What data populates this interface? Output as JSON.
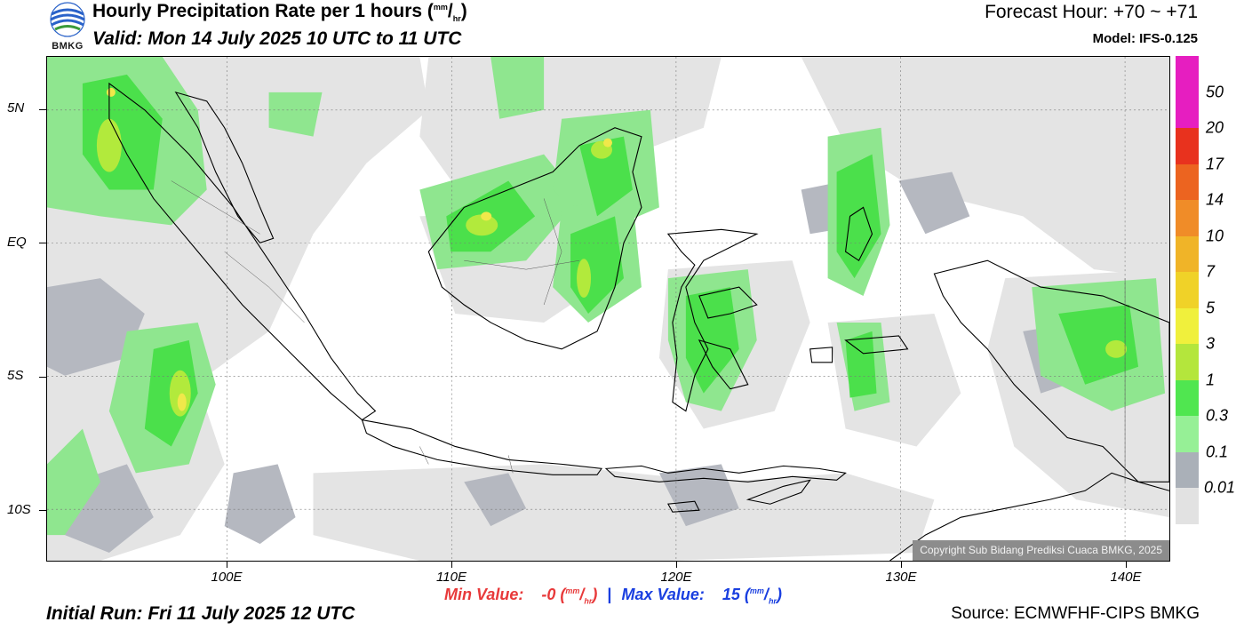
{
  "header": {
    "title_main": "Hourly Precipitation Rate per 1 hours (",
    "title_unit_num": "mm",
    "title_unit_sep": "/",
    "title_unit_den": "hr",
    "title_close": ")",
    "valid": "Valid: Mon 14 July 2025 10 UTC to 11 UTC",
    "forecast_hour": "Forecast Hour: +70 ~ +71",
    "model": "Model: IFS-0.125",
    "logo_text": "BMKG"
  },
  "map": {
    "copyright": "Copyright Sub Bidang Prediksi Cuaca BMKG, 2025",
    "lat_labels": [
      "5N",
      "EQ",
      "5S",
      "10S"
    ],
    "lon_labels": [
      "100E",
      "110E",
      "120E",
      "130E",
      "140E"
    ],
    "colors": {
      "very_light": "#e4e4e4",
      "light_gray": "#b5b8c0",
      "light_green": "#8fe68f",
      "green": "#4be04b",
      "yellow_green": "#b2ea3c",
      "yellow": "#f0e84a",
      "coast": "#000000"
    }
  },
  "legend": {
    "labels": [
      "50",
      "20",
      "17",
      "14",
      "10",
      "7",
      "5",
      "3",
      "1",
      "0.3",
      "0.1",
      "0.01"
    ],
    "colors": [
      "#e61ec0",
      "#e8321e",
      "#ec6420",
      "#f08c28",
      "#f0b428",
      "#f0d228",
      "#f0f03c",
      "#b4e63c",
      "#50e650",
      "#96f096",
      "#aab0b8",
      "#e2e2e2"
    ]
  },
  "stats": {
    "min_label": "Min Value:",
    "min_value": "-0",
    "max_label": "Max Value:",
    "max_value": "15",
    "unit_num": "mm",
    "unit_den": "hr",
    "separator": "|"
  },
  "footer": {
    "initial_run": "Initial Run: Fri 11 July 2025 12 UTC",
    "source": "Source: ECMWFHF-CIPS BMKG"
  }
}
